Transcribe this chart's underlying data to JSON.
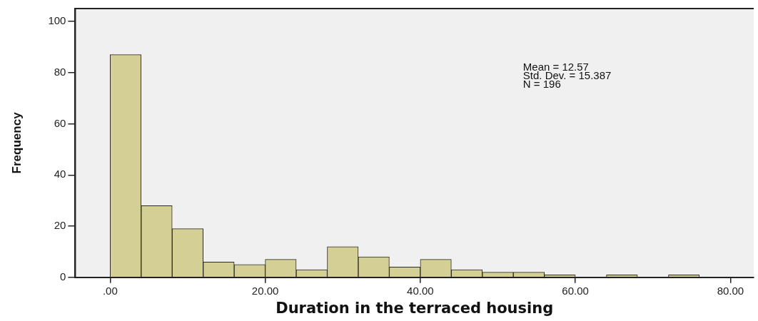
{
  "chart_data": {
    "type": "histogram",
    "xlabel": "Duration in the terraced housing",
    "ylabel": "Frequency",
    "bins": [
      0,
      4,
      8,
      12,
      16,
      20,
      24,
      28,
      32,
      36,
      40,
      44,
      48,
      52,
      56,
      60,
      64,
      68,
      72,
      76
    ],
    "values": [
      87,
      28,
      19,
      6,
      5,
      7,
      3,
      12,
      8,
      4,
      7,
      3,
      2,
      2,
      1,
      0,
      1,
      0,
      1
    ],
    "color": "#d4cf94",
    "xlim": [
      -4.5,
      83
    ],
    "ylim": [
      0,
      105
    ],
    "xticks": [
      {
        "value": 0,
        "label": ".00"
      },
      {
        "value": 20,
        "label": "20.00"
      },
      {
        "value": 40,
        "label": "40.00"
      },
      {
        "value": 60,
        "label": "60.00"
      },
      {
        "value": 80,
        "label": "80.00"
      }
    ],
    "yticks": [
      0,
      20,
      40,
      60,
      80,
      100
    ],
    "grid": false,
    "legend": false,
    "annotations": [
      "Mean = 12.57",
      "Std. Dev. = 15.387",
      "N = 196"
    ]
  }
}
